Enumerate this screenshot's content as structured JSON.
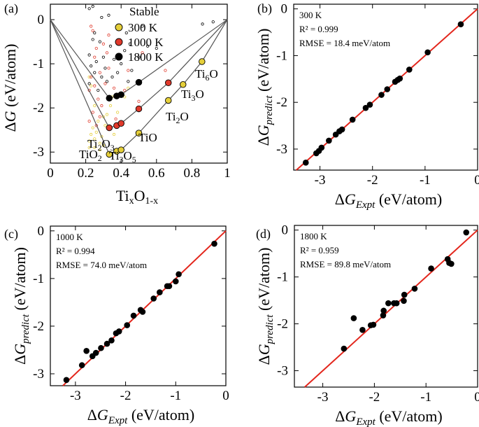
{
  "chart_data": [
    {
      "panel": "(a)",
      "type": "scatter",
      "xlabel": "TixO1-x",
      "xlabel_parts": {
        "a": "Ti",
        "b": "x",
        "c": "O",
        "d": "1-x"
      },
      "ylabel": "ΔG (eV/atom)",
      "xlim": [
        0,
        1
      ],
      "ylim": [
        -3.25,
        0.35
      ],
      "xticks": [
        0,
        0.2,
        0.4,
        0.6,
        0.8,
        1
      ],
      "xtick_labels": [
        "0",
        "0.2",
        "0.4",
        "0.6",
        "0.8",
        "1"
      ],
      "yticks": [
        0,
        -1,
        -2,
        -3
      ],
      "ytick_labels": [
        "0",
        "-1",
        "-2",
        "-3"
      ],
      "legend_title": "Stable",
      "legend": [
        "300 K",
        "1000 K",
        "1800 K"
      ],
      "colors": {
        "300 K": "#e5cf3a",
        "1000 K": "#e0392b",
        "1800 K": "#000000"
      },
      "series": [
        {
          "name": "300 K",
          "x": [
            0,
            0.333,
            0.375,
            0.4,
            0.5,
            0.667,
            0.75,
            0.857,
            1
          ],
          "y": [
            0,
            -3.05,
            -2.98,
            -2.95,
            -2.57,
            -1.83,
            -1.47,
            -0.95,
            0
          ]
        },
        {
          "name": "1000 K",
          "x": [
            0,
            0.333,
            0.375,
            0.4,
            0.5,
            0.667,
            1
          ],
          "y": [
            0,
            -2.45,
            -2.4,
            -2.35,
            -2.02,
            -1.43,
            0
          ]
        },
        {
          "name": "1800 K",
          "x": [
            0,
            0.333,
            0.375,
            0.4,
            0.5,
            1
          ],
          "y": [
            0,
            -1.78,
            -1.73,
            -1.7,
            -1.42,
            0
          ]
        }
      ],
      "unstable_points": {
        "300 K": {
          "x": [
            0.22,
            0.22,
            0.23,
            0.24,
            0.25,
            0.25,
            0.26,
            0.27,
            0.28,
            0.28,
            0.29,
            0.3,
            0.3,
            0.31,
            0.32,
            0.34,
            0.35,
            0.36,
            0.38,
            0.42,
            0.44,
            0.22,
            0.23,
            0.25
          ],
          "y": [
            -2.9,
            -2.75,
            -2.6,
            -2.45,
            -2.9,
            -2.7,
            -2.55,
            -2.3,
            -2.8,
            -2.95,
            -2.65,
            -2.2,
            -2.85,
            -2.4,
            -2.15,
            -1.95,
            -1.75,
            -2.6,
            -2.1,
            -1.75,
            -1.55,
            -1.3,
            -1.5,
            -1.95
          ]
        },
        "1000 K": {
          "x": [
            0.22,
            0.22,
            0.23,
            0.24,
            0.25,
            0.25,
            0.26,
            0.27,
            0.28,
            0.28,
            0.29,
            0.3,
            0.31,
            0.32,
            0.33,
            0.33,
            0.36,
            0.37,
            0.42,
            0.23,
            0.24,
            0.26,
            0.44,
            0.5,
            0.52,
            0.65
          ],
          "y": [
            -2.3,
            -1.6,
            -1.3,
            -2.1,
            -0.85,
            -1.5,
            -2.4,
            -1.8,
            -1.2,
            -2.2,
            -1.95,
            -0.55,
            -1.45,
            -0.75,
            -0.35,
            -1.1,
            -1.55,
            -2.25,
            -1.6,
            -0.15,
            -0.25,
            -0.65,
            -1.15,
            -1.85,
            -0.75,
            -1.15
          ]
        },
        "1800 K": {
          "x": [
            0.22,
            0.22,
            0.23,
            0.24,
            0.25,
            0.26,
            0.27,
            0.28,
            0.29,
            0.3,
            0.31,
            0.32,
            0.34,
            0.35,
            0.36,
            0.38,
            0.4,
            0.42,
            0.44,
            0.45,
            0.46,
            0.5,
            0.55,
            0.6,
            0.22,
            0.24,
            0.29,
            0.33,
            0.43,
            0.52,
            0.86,
            0.92,
            0.25
          ],
          "y": [
            -0.8,
            -1.45,
            -1.05,
            -0.45,
            -1.2,
            -0.95,
            -1.6,
            -0.5,
            -1.3,
            -0.85,
            -1.1,
            -1.4,
            -0.6,
            -1.3,
            -0.9,
            -1.2,
            -1.0,
            -0.7,
            -1.4,
            -0.55,
            -1.15,
            -0.85,
            -0.6,
            -0.65,
            0.25,
            0.3,
            0.05,
            0.1,
            -0.3,
            -0.15,
            -0.1,
            -0.05,
            -0.3
          ]
        }
      },
      "phase_labels": [
        "Ti6O",
        "Ti3O",
        "Ti2O",
        "TiO",
        "Ti2O3",
        "TiO2",
        "Ti3O5"
      ]
    },
    {
      "panel": "(b)",
      "type": "scatter",
      "annotation": [
        "300 K",
        "R² = 0.999",
        "RMSE = 18.4 meV/atom"
      ],
      "xlabel": "ΔGExpt (eV/atom)",
      "ylabel": "ΔGpredict (eV/atom)",
      "xlim": [
        -3.5,
        0
      ],
      "ylim": [
        -3.45,
        0.1
      ],
      "xticks": [
        -3,
        -2,
        -1,
        0
      ],
      "yticks": [
        0,
        -1,
        -2,
        -3
      ],
      "x": [
        -3.27,
        -3.07,
        -3.02,
        -2.97,
        -2.83,
        -2.7,
        -2.63,
        -2.58,
        -2.38,
        -2.13,
        -2.05,
        -1.83,
        -1.72,
        -1.57,
        -1.52,
        -1.48,
        -1.3,
        -0.95,
        -0.32
      ],
      "y": [
        -3.29,
        -3.09,
        -3.04,
        -2.97,
        -2.82,
        -2.69,
        -2.62,
        -2.58,
        -2.37,
        -2.12,
        -2.05,
        -1.84,
        -1.72,
        -1.56,
        -1.52,
        -1.49,
        -1.3,
        -0.93,
        -0.33
      ]
    },
    {
      "panel": "(c)",
      "type": "scatter",
      "annotation": [
        "1000 K",
        "R² = 0.994",
        "RMSE = 74.0 meV/atom"
      ],
      "xlabel": "ΔGExpt (eV/atom)",
      "ylabel": "ΔGpredict (eV/atom)",
      "xlim": [
        -3.5,
        0
      ],
      "ylim": [
        -3.25,
        0.1
      ],
      "xticks": [
        -3,
        -2,
        -1,
        0
      ],
      "yticks": [
        0,
        -1,
        -2,
        -3
      ],
      "x": [
        -3.18,
        -2.87,
        -2.78,
        -2.66,
        -2.59,
        -2.49,
        -2.37,
        -2.28,
        -2.19,
        -2.13,
        -1.97,
        -1.84,
        -1.7,
        -1.66,
        -1.44,
        -1.32,
        -1.17,
        -1.13,
        -1.0,
        -0.94,
        -0.23
      ],
      "y": [
        -3.13,
        -2.82,
        -2.52,
        -2.63,
        -2.56,
        -2.46,
        -2.37,
        -2.3,
        -2.15,
        -2.11,
        -1.98,
        -1.78,
        -1.66,
        -1.7,
        -1.42,
        -1.29,
        -1.16,
        -1.16,
        -1.06,
        -0.91,
        -0.27
      ]
    },
    {
      "panel": "(d)",
      "type": "scatter",
      "annotation": [
        "1800 K",
        "R² = 0.959",
        "RMSE = 89.8 meV/atom"
      ],
      "xlabel": "ΔGExpt (eV/atom)",
      "ylabel": "ΔGpredict (eV/atom)",
      "xlim": [
        -3.55,
        0
      ],
      "ylim": [
        -3.35,
        0.1
      ],
      "xticks": [
        -3,
        -2,
        -1,
        0
      ],
      "yticks": [
        0,
        -1,
        -2,
        -3
      ],
      "x": [
        -2.59,
        -2.4,
        -2.23,
        -2.07,
        -2.02,
        -1.83,
        -1.82,
        -1.73,
        -1.62,
        -1.57,
        -1.43,
        -1.42,
        -1.22,
        -0.9,
        -0.58,
        -0.55,
        -0.51,
        -0.22
      ],
      "y": [
        -2.53,
        -1.88,
        -2.13,
        -2.03,
        -2.02,
        -1.82,
        -1.72,
        -1.56,
        -1.56,
        -1.56,
        -1.51,
        -1.38,
        -1.25,
        -0.82,
        -0.62,
        -0.7,
        -0.72,
        -0.05
      ]
    }
  ]
}
